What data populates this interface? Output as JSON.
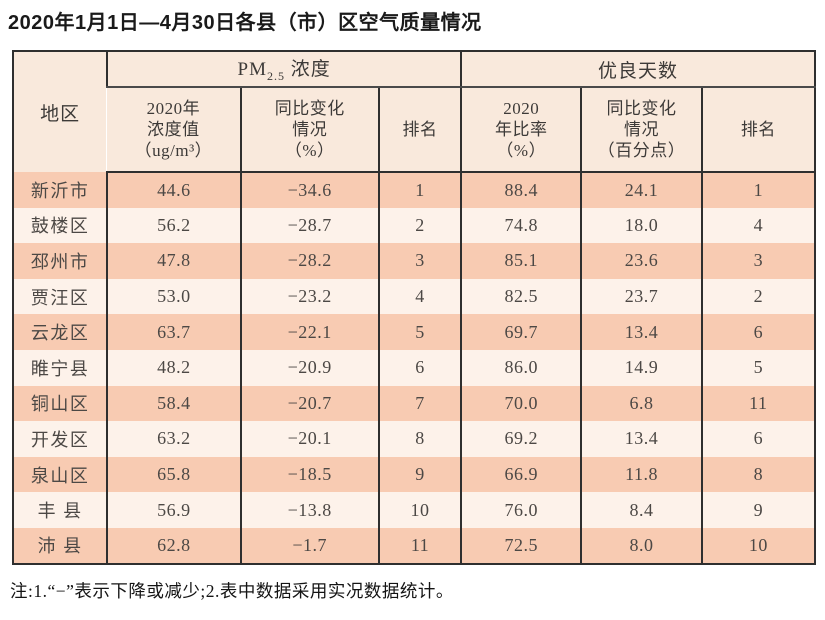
{
  "title": "2020年1月1日—4月30日各县（市）区空气质量情况",
  "table": {
    "region_header": "地区",
    "group1": {
      "prefix": "PM",
      "sub": "2.5",
      "suffix": " 浓度"
    },
    "group2": "优良天数",
    "subheaders": {
      "pm_value": "2020年\n浓度值\n（ug/m³）",
      "pm_change": "同比变化\n情况\n（%）",
      "pm_rank": "排名",
      "days_rate": "2020\n年比率\n（%）",
      "days_change": "同比变化\n情况\n（百分点）",
      "days_rank": "排名"
    },
    "rows": [
      {
        "region": "新沂市",
        "pm_value": "44.6",
        "pm_change": "−34.6",
        "pm_rank": "1",
        "days_rate": "88.4",
        "days_change": "24.1",
        "days_rank": "1"
      },
      {
        "region": "鼓楼区",
        "pm_value": "56.2",
        "pm_change": "−28.7",
        "pm_rank": "2",
        "days_rate": "74.8",
        "days_change": "18.0",
        "days_rank": "4"
      },
      {
        "region": "邳州市",
        "pm_value": "47.8",
        "pm_change": "−28.2",
        "pm_rank": "3",
        "days_rate": "85.1",
        "days_change": "23.6",
        "days_rank": "3"
      },
      {
        "region": "贾汪区",
        "pm_value": "53.0",
        "pm_change": "−23.2",
        "pm_rank": "4",
        "days_rate": "82.5",
        "days_change": "23.7",
        "days_rank": "2"
      },
      {
        "region": "云龙区",
        "pm_value": "63.7",
        "pm_change": "−22.1",
        "pm_rank": "5",
        "days_rate": "69.7",
        "days_change": "13.4",
        "days_rank": "6"
      },
      {
        "region": "睢宁县",
        "pm_value": "48.2",
        "pm_change": "−20.9",
        "pm_rank": "6",
        "days_rate": "86.0",
        "days_change": "14.9",
        "days_rank": "5"
      },
      {
        "region": "铜山区",
        "pm_value": "58.4",
        "pm_change": "−20.7",
        "pm_rank": "7",
        "days_rate": "70.0",
        "days_change": "6.8",
        "days_rank": "11"
      },
      {
        "region": "开发区",
        "pm_value": "63.2",
        "pm_change": "−20.1",
        "pm_rank": "8",
        "days_rate": "69.2",
        "days_change": "13.4",
        "days_rank": "6"
      },
      {
        "region": "泉山区",
        "pm_value": "65.8",
        "pm_change": "−18.5",
        "pm_rank": "9",
        "days_rate": "66.9",
        "days_change": "11.8",
        "days_rank": "8"
      },
      {
        "region": "丰 县",
        "pm_value": "56.9",
        "pm_change": "−13.8",
        "pm_rank": "10",
        "days_rate": "76.0",
        "days_change": "8.4",
        "days_rank": "9"
      },
      {
        "region": "沛 县",
        "pm_value": "62.8",
        "pm_change": "−1.7",
        "pm_rank": "11",
        "days_rate": "72.5",
        "days_change": "8.0",
        "days_rank": "10"
      }
    ]
  },
  "footnote": "注:1.“−”表示下降或减少;2.表中数据采用实况数据统计。",
  "colors": {
    "row_odd": "#f8cbb2",
    "row_even": "#fdf2ea",
    "header_bg": "#f9e9dc",
    "border": "#2f2f2f",
    "text": "#4c4845",
    "title_text": "#1a1a1a"
  }
}
